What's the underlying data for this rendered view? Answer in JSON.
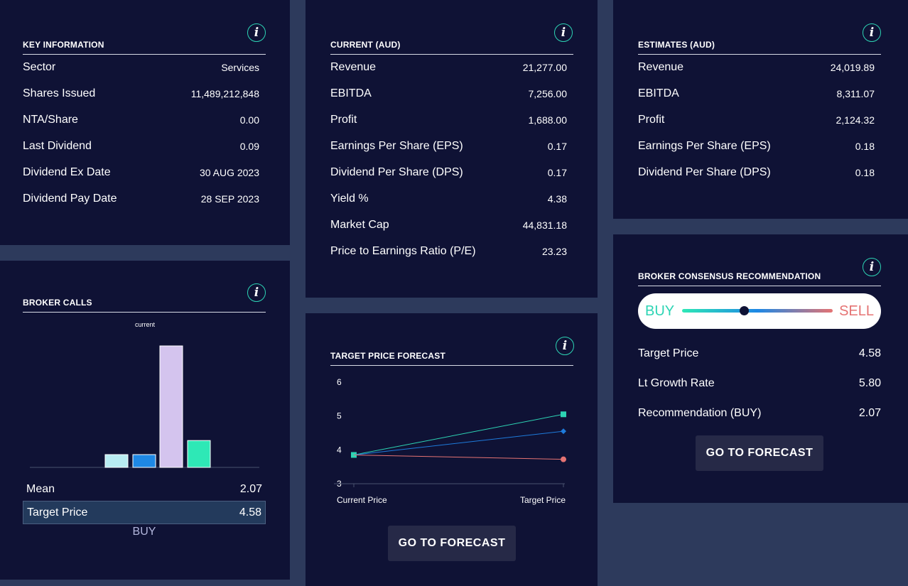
{
  "key_info": {
    "title": "KEY INFORMATION",
    "rows": [
      {
        "label": "Sector",
        "value": "Services"
      },
      {
        "label": "Shares Issued",
        "value": "11,489,212,848"
      },
      {
        "label": "NTA/Share",
        "value": "0.00"
      },
      {
        "label": "Last Dividend",
        "value": "0.09"
      },
      {
        "label": "Dividend Ex Date",
        "value": "30 AUG 2023"
      },
      {
        "label": "Dividend Pay Date",
        "value": "28 SEP 2023"
      }
    ]
  },
  "current": {
    "title": "CURRENT (AUD)",
    "rows": [
      {
        "label": "Revenue",
        "value": "21,277.00"
      },
      {
        "label": "EBITDA",
        "value": "7,256.00"
      },
      {
        "label": "Profit",
        "value": "1,688.00"
      },
      {
        "label": "Earnings Per Share (EPS)",
        "value": "0.17"
      },
      {
        "label": "Dividend Per Share (DPS)",
        "value": "0.17"
      },
      {
        "label": "Yield %",
        "value": "4.38"
      },
      {
        "label": "Market Cap",
        "value": "44,831.18"
      },
      {
        "label": "Price to Earnings Ratio (P/E)",
        "value": "23.23"
      }
    ]
  },
  "estimates": {
    "title": "ESTIMATES (AUD)",
    "rows": [
      {
        "label": "Revenue",
        "value": "24,019.89"
      },
      {
        "label": "EBITDA",
        "value": "8,311.07"
      },
      {
        "label": "Profit",
        "value": "2,124.32"
      },
      {
        "label": "Earnings Per Share (EPS)",
        "value": "0.18"
      },
      {
        "label": "Dividend Per Share (DPS)",
        "value": "0.18"
      }
    ]
  },
  "broker_calls": {
    "title": "BROKER CALLS",
    "mean_label": "Mean",
    "mean_value": "2.07",
    "target_label": "Target Price",
    "target_value": "4.58",
    "verdict": "BUY"
  },
  "target_forecast": {
    "title": "TARGET PRICE FORECAST",
    "button": "GO TO FORECAST"
  },
  "consensus": {
    "title": "BROKER CONSENSUS RECOMMENDATION",
    "buy": "BUY",
    "sell": "SELL",
    "slider_position": 0.41,
    "rows": [
      {
        "label": "Target Price",
        "value": "4.58"
      },
      {
        "label": "Lt Growth Rate",
        "value": "5.80"
      },
      {
        "label": "Recommendation (BUY)",
        "value": "2.07"
      }
    ],
    "button": "GO TO FORECAST"
  },
  "info_glyph": "i",
  "chart_data": [
    {
      "type": "bar",
      "title": "",
      "subtitle": "current",
      "categories": [
        "",
        "",
        "",
        ""
      ],
      "values": [
        1,
        1,
        9.5,
        2.1
      ],
      "colors": [
        "#b8ecf2",
        "#1e88e5",
        "#d4c4ee",
        "#2ee8b6"
      ],
      "ylim": [
        0,
        10
      ]
    },
    {
      "type": "line",
      "categories": [
        "Current Price",
        "Target Price"
      ],
      "yticks": [
        "3",
        "4",
        "5",
        "6"
      ],
      "ylim": [
        3,
        6
      ],
      "series": [
        {
          "values": [
            3.85,
            5.05
          ],
          "color": "#2dd4b4",
          "marker": "square"
        },
        {
          "values": [
            3.85,
            4.55
          ],
          "color": "#1e7bdc",
          "marker": "diamond"
        },
        {
          "values": [
            3.85,
            3.72
          ],
          "color": "#e57373",
          "marker": "circle"
        }
      ]
    }
  ]
}
